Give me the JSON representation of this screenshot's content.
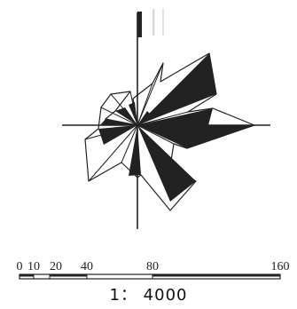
{
  "scale_bar": {
    "tick_labels": [
      "0",
      "10",
      "20",
      "40",
      "80",
      "160"
    ],
    "ratio_text": "1： 4000"
  },
  "diagram": {
    "type": "wind-rose",
    "line_color": "#222222",
    "fill_color": "#222222"
  }
}
